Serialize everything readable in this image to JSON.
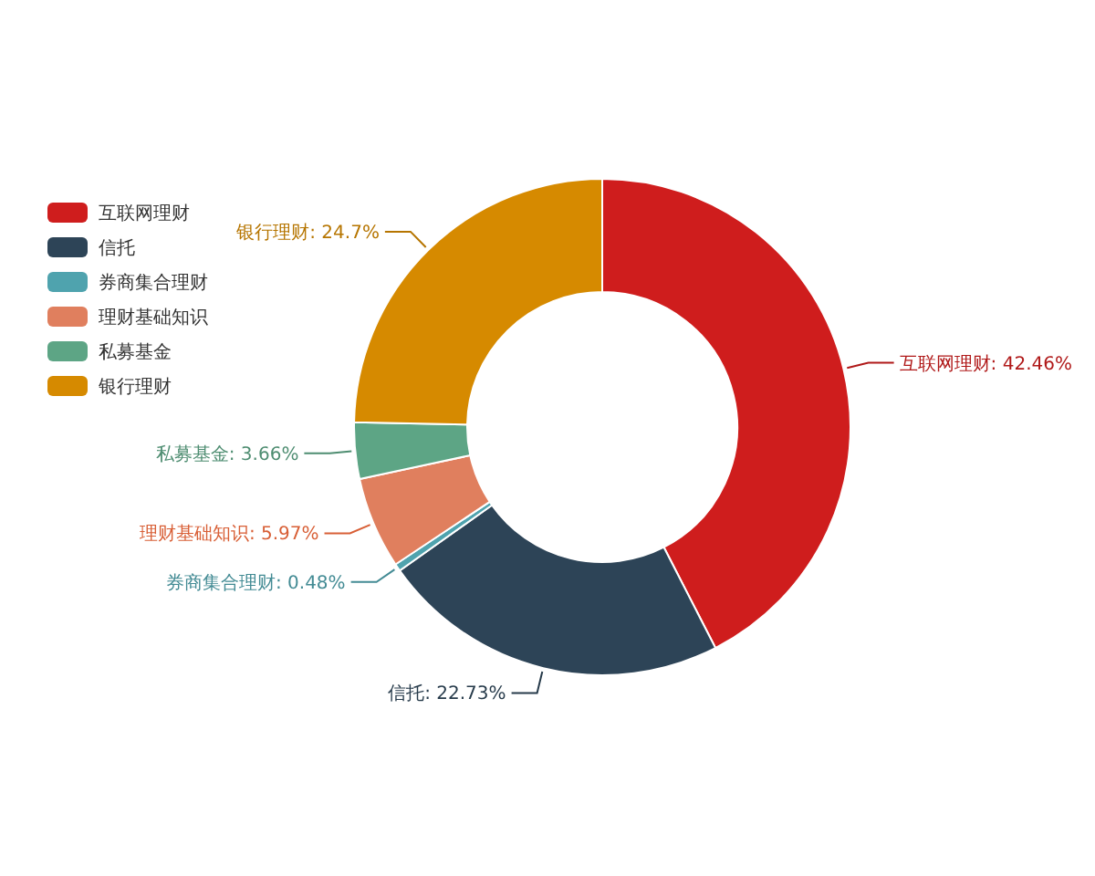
{
  "chart_data": {
    "type": "donut",
    "categories": [
      "互联网理财",
      "信托",
      "券商集合理财",
      "理财基础知识",
      "私募基金",
      "银行理财"
    ],
    "values": [
      42.46,
      22.73,
      0.48,
      5.97,
      3.66,
      24.7
    ],
    "colors": [
      "#cf1d1d",
      "#2d4457",
      "#4fa3ae",
      "#e07f5e",
      "#5da585",
      "#d68a00"
    ],
    "value_labels": [
      "互联网理财: 42.46%",
      "信托: 22.73%",
      "券商集合理财: 0.48%",
      "理财基础知识: 5.97%",
      "私募基金: 3.66%",
      "银行理财: 24.7%"
    ],
    "legend": "top left"
  }
}
